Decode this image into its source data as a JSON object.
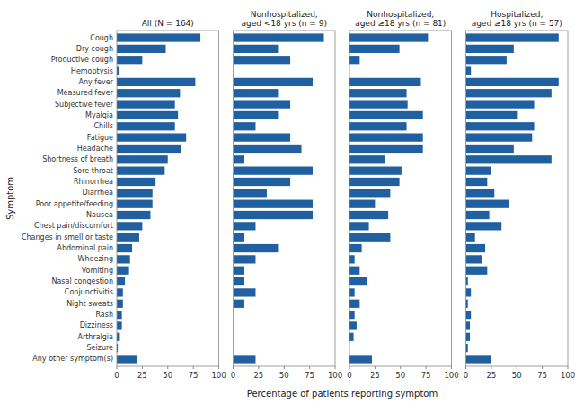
{
  "chart_data": [
    {
      "type": "bar",
      "orientation": "horizontal",
      "title": "All (N = 164)",
      "xlabel": "Percentage of patients reporting symptom",
      "ylabel": "Symptom",
      "categories": [
        "Cough",
        "Dry cough",
        "Productive cough",
        "Hemoptysis",
        "Any fever",
        "Measured fever",
        "Subjective fever",
        "Myalgia",
        "Chills",
        "Fatigue",
        "Headache",
        "Shortness of breath",
        "Sore throat",
        "Rhinorrhea",
        "Diarrhea",
        "Poor appetite/feeding",
        "Nausea",
        "Chest pain/discomfort",
        "Changes in smell or taste",
        "Abdominal pain",
        "Wheezing",
        "Vomiting",
        "Nasal congestion",
        "Conjunctivitis",
        "Night sweats",
        "Rash",
        "Dizziness",
        "Arthralgia",
        "Seizure",
        "Any other symptom(s)"
      ],
      "values": [
        82,
        48,
        25,
        2,
        77,
        62,
        57,
        60,
        57,
        68,
        63,
        50,
        47,
        38,
        35,
        35,
        33,
        25,
        22,
        15,
        13,
        12,
        8,
        6,
        6,
        5,
        5,
        3,
        1,
        20
      ],
      "color": "#2060a0",
      "xlim": [
        0,
        100
      ],
      "xticks": [
        0,
        25,
        50,
        75,
        100
      ],
      "grid": false
    },
    {
      "type": "bar",
      "orientation": "horizontal",
      "title": "Nonhospitalized,\naged <18 yrs (n = 9)",
      "categories": [
        "Cough",
        "Dry cough",
        "Productive cough",
        "Hemoptysis",
        "Any fever",
        "Measured fever",
        "Subjective fever",
        "Myalgia",
        "Chills",
        "Fatigue",
        "Headache",
        "Shortness of breath",
        "Sore throat",
        "Rhinorrhea",
        "Diarrhea",
        "Poor appetite/feeding",
        "Nausea",
        "Chest pain/discomfort",
        "Changes in smell or taste",
        "Abdominal pain",
        "Wheezing",
        "Vomiting",
        "Nasal congestion",
        "Conjunctivitis",
        "Night sweats",
        "Rash",
        "Dizziness",
        "Arthralgia",
        "Seizure",
        "Any other symptom(s)"
      ],
      "values": [
        89,
        44,
        56,
        0,
        78,
        44,
        56,
        44,
        22,
        56,
        67,
        11,
        78,
        56,
        33,
        78,
        78,
        22,
        11,
        44,
        22,
        11,
        11,
        22,
        11,
        0,
        0,
        0,
        0,
        22
      ],
      "color": "#2060a0",
      "xlim": [
        0,
        100
      ],
      "xticks": [
        0,
        25,
        50,
        75,
        100
      ],
      "grid": false,
      "tick_labels": "x"
    },
    {
      "type": "bar",
      "orientation": "horizontal",
      "title": "Nonhospitalized,\naged ≥18 yrs (n = 81)",
      "categories": [
        "Cough",
        "Dry cough",
        "Productive cough",
        "Hemoptysis",
        "Any fever",
        "Measured fever",
        "Subjective fever",
        "Myalgia",
        "Chills",
        "Fatigue",
        "Headache",
        "Shortness of breath",
        "Sore throat",
        "Rhinorrhea",
        "Diarrhea",
        "Poor appetite/feeding",
        "Nausea",
        "Chest pain/discomfort",
        "Changes in smell or taste",
        "Abdominal pain",
        "Wheezing",
        "Vomiting",
        "Nasal congestion",
        "Conjunctivitis",
        "Night sweats",
        "Rash",
        "Dizziness",
        "Arthralgia",
        "Seizure",
        "Any other symptom(s)"
      ],
      "values": [
        77,
        49,
        10,
        0,
        70,
        56,
        57,
        72,
        56,
        72,
        72,
        35,
        51,
        49,
        40,
        25,
        38,
        19,
        40,
        12,
        5,
        10,
        17,
        5,
        10,
        5,
        7,
        4,
        0,
        22
      ],
      "color": "#2060a0",
      "xlim": [
        0,
        100
      ],
      "xticks": [
        0,
        25,
        50,
        75,
        100
      ],
      "grid": false,
      "tick_labels": "x"
    },
    {
      "type": "bar",
      "orientation": "horizontal",
      "title": "Hospitalized,\naged ≥18 yrs (n = 57)",
      "categories": [
        "Cough",
        "Dry cough",
        "Productive cough",
        "Hemoptysis",
        "Any fever",
        "Measured fever",
        "Subjective fever",
        "Myalgia",
        "Chills",
        "Fatigue",
        "Headache",
        "Shortness of breath",
        "Sore throat",
        "Rhinorrhea",
        "Diarrhea",
        "Poor appetite/feeding",
        "Nausea",
        "Chest pain/discomfort",
        "Changes in smell or taste",
        "Abdominal pain",
        "Wheezing",
        "Vomiting",
        "Nasal congestion",
        "Conjunctivitis",
        "Night sweats",
        "Rash",
        "Dizziness",
        "Arthralgia",
        "Seizure",
        "Any other symptom(s)"
      ],
      "values": [
        91,
        47,
        40,
        5,
        91,
        84,
        67,
        51,
        67,
        65,
        47,
        84,
        25,
        21,
        28,
        42,
        23,
        35,
        9,
        19,
        16,
        21,
        2,
        5,
        2,
        5,
        4,
        4,
        2,
        25
      ],
      "color": "#2060a0",
      "xlim": [
        0,
        100
      ],
      "xticks": [
        0,
        25,
        50,
        75,
        100
      ],
      "grid": false,
      "tick_labels": "x"
    }
  ]
}
